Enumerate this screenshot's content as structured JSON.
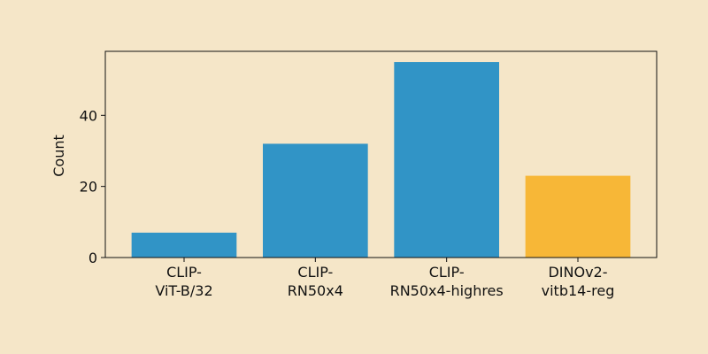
{
  "chart_data": {
    "type": "bar",
    "categories": [
      [
        "CLIP-",
        "ViT-B/32"
      ],
      [
        "CLIP-",
        "RN50x4"
      ],
      [
        "CLIP-",
        "RN50x4-highres"
      ],
      [
        "DINOv2-",
        "vitb14-reg"
      ]
    ],
    "values": [
      7,
      32,
      55,
      23
    ],
    "colors": [
      "#3194c6",
      "#3194c6",
      "#3194c6",
      "#f7b737"
    ],
    "ylabel": "Count",
    "ylim": [
      0,
      58
    ],
    "yticks": [
      0,
      20,
      40
    ],
    "grid": false
  }
}
